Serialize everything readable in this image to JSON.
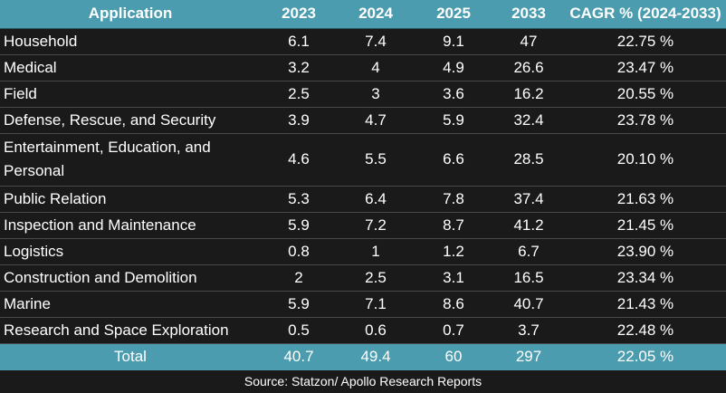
{
  "header": {
    "application": "Application",
    "y2023": "2023",
    "y2024": "2024",
    "y2025": "2025",
    "y2033": "2033",
    "cagr": "CAGR % (2024-2033)"
  },
  "rows": [
    {
      "application": "Household",
      "y2023": "6.1",
      "y2024": "7.4",
      "y2025": "9.1",
      "y2033": "47",
      "cagr": "22.75 %"
    },
    {
      "application": "Medical",
      "y2023": "3.2",
      "y2024": "4",
      "y2025": "4.9",
      "y2033": "26.6",
      "cagr": "23.47 %"
    },
    {
      "application": "Field",
      "y2023": "2.5",
      "y2024": "3",
      "y2025": "3.6",
      "y2033": "16.2",
      "cagr": "20.55 %"
    },
    {
      "application": "Defense, Rescue, and Security",
      "y2023": "3.9",
      "y2024": "4.7",
      "y2025": "5.9",
      "y2033": "32.4",
      "cagr": "23.78 %"
    },
    {
      "application": "Entertainment, Education, and Personal",
      "y2023": "4.6",
      "y2024": "5.5",
      "y2025": "6.6",
      "y2033": "28.5",
      "cagr": "20.10 %"
    },
    {
      "application": "Public Relation",
      "y2023": "5.3",
      "y2024": "6.4",
      "y2025": "7.8",
      "y2033": "37.4",
      "cagr": "21.63 %"
    },
    {
      "application": "Inspection and Maintenance",
      "y2023": "5.9",
      "y2024": "7.2",
      "y2025": "8.7",
      "y2033": "41.2",
      "cagr": "21.45 %"
    },
    {
      "application": "Logistics",
      "y2023": "0.8",
      "y2024": "1",
      "y2025": "1.2",
      "y2033": "6.7",
      "cagr": "23.90 %"
    },
    {
      "application": "Construction and Demolition",
      "y2023": "2",
      "y2024": "2.5",
      "y2025": "3.1",
      "y2033": "16.5",
      "cagr": "23.34 %"
    },
    {
      "application": "Marine",
      "y2023": "5.9",
      "y2024": "7.1",
      "y2025": "8.6",
      "y2033": "40.7",
      "cagr": "21.43 %"
    },
    {
      "application": "Research and Space Exploration",
      "y2023": "0.5",
      "y2024": "0.6",
      "y2025": "0.7",
      "y2033": "3.7",
      "cagr": "22.48 %"
    }
  ],
  "total": {
    "application": "Total",
    "y2023": "40.7",
    "y2024": "49.4",
    "y2025": "60",
    "y2033": "297",
    "cagr": "22.05 %"
  },
  "source": "Source: Statzon/ Apollo Research Reports",
  "colors": {
    "header_bg": "#4a9cae",
    "body_bg": "#1a1a1a",
    "text": "#ffffff"
  }
}
